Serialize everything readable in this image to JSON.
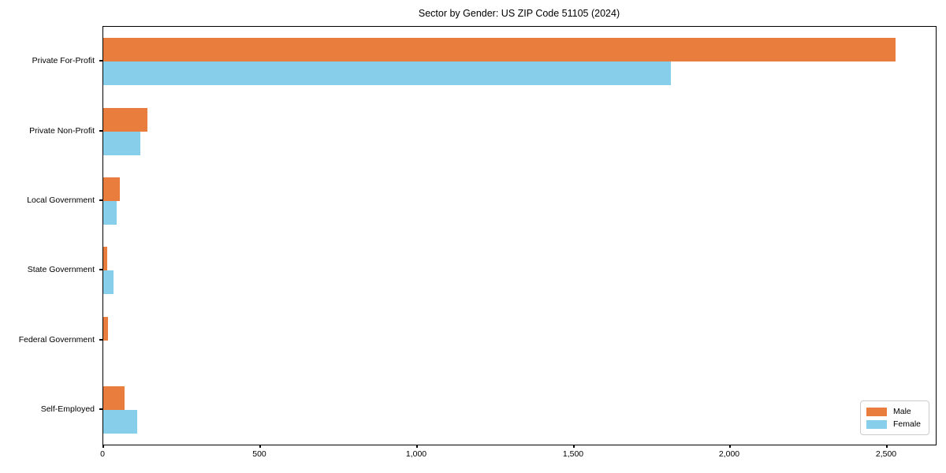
{
  "chart_data": {
    "type": "bar",
    "orientation": "horizontal",
    "title": "Sector by Gender: US ZIP Code 51105 (2024)",
    "categories": [
      "Private For-Profit",
      "Private Non-Profit",
      "Local Government",
      "State Government",
      "Federal Government",
      "Self-Employed"
    ],
    "series": [
      {
        "name": "Male",
        "color": "#e87d3e",
        "values": [
          2528,
          140,
          52,
          12,
          16,
          67
        ]
      },
      {
        "name": "Female",
        "color": "#87ceeb",
        "values": [
          1810,
          119,
          42,
          32,
          0,
          107
        ]
      }
    ],
    "xlabel": "",
    "ylabel": "",
    "xlim": [
      0,
      2655
    ],
    "x_ticks": [
      0,
      500,
      1000,
      1500,
      2000,
      2500
    ],
    "x_tick_labels": [
      "0",
      "500",
      "1,000",
      "1,500",
      "2,000",
      "2,500"
    ],
    "grid": false,
    "legend": {
      "position": "lower right",
      "entries": [
        "Male",
        "Female"
      ]
    }
  }
}
